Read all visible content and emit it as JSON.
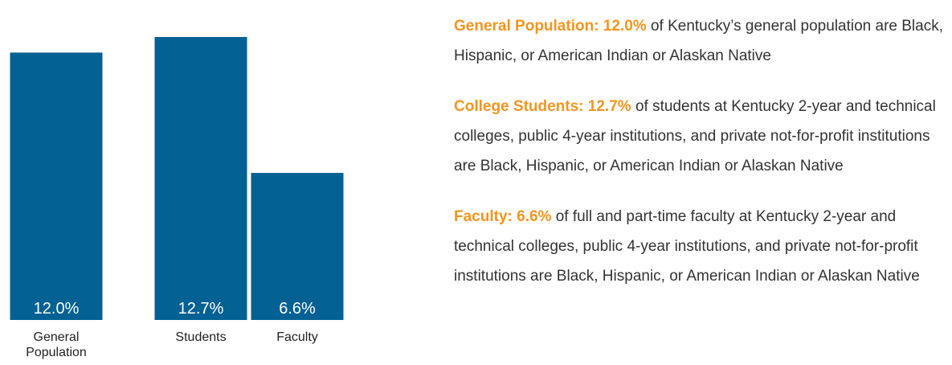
{
  "chart_data": {
    "type": "bar",
    "categories": [
      "General Population",
      "Students",
      "Faculty"
    ],
    "values": [
      12.0,
      12.7,
      6.6
    ],
    "value_labels": [
      "12.0%",
      "12.7%",
      "6.6%"
    ],
    "color": "#036193",
    "ylim": [
      0,
      12.7
    ],
    "annotations": [
      {
        "lead": "General Population: 12.0%",
        "text": " of Kentucky’s general population are Black, Hispanic, or American Indian or Alaskan Native"
      },
      {
        "lead": "College Students: 12.7%",
        "text": " of students at Kentucky 2-year and technical colleges, public 4-year institutions, and private not-for-profit institutions are Black, Hispanic, or American Indian or Alaskan Native"
      },
      {
        "lead": "Faculty: 6.6%",
        "text": " of full and part-time faculty at Kentucky 2-year and technical colleges, public 4-year institutions, and private not-for-profit institutions are Black, Hispanic, or American Indian or Alaskan Native"
      }
    ]
  }
}
